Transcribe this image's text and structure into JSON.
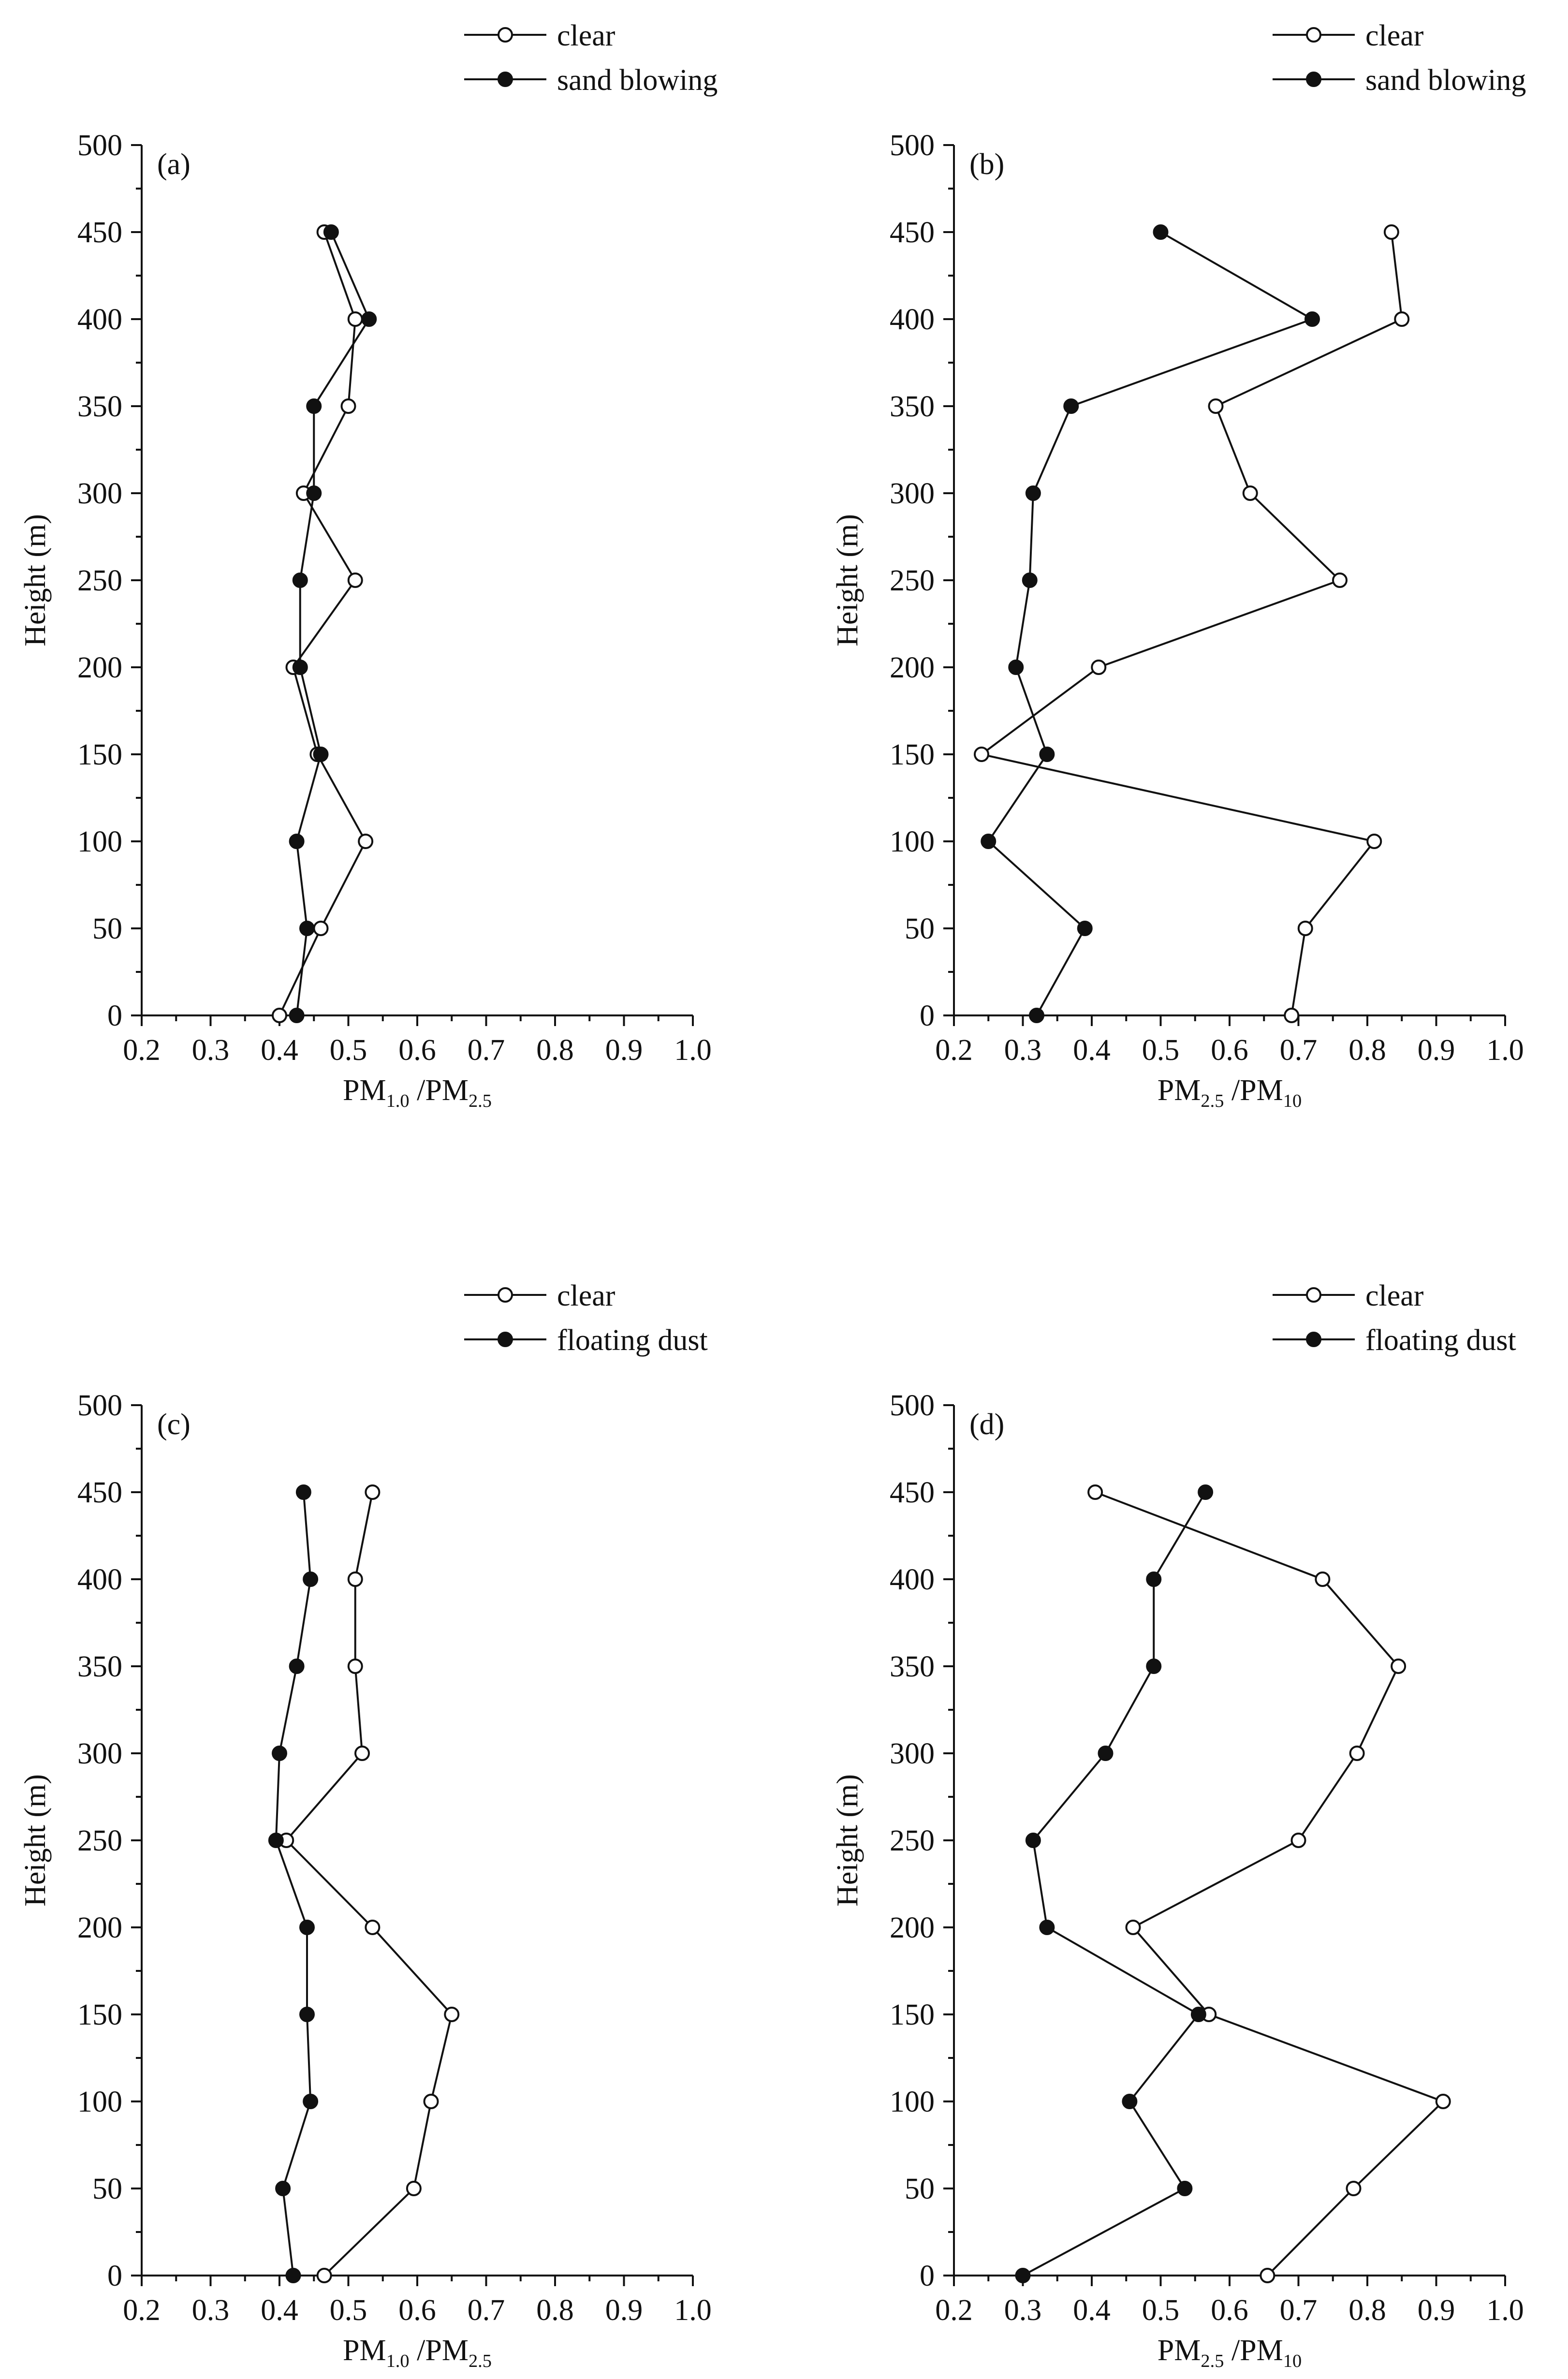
{
  "chart_data": [
    {
      "type": "line",
      "panel_label": "(a)",
      "xlabel": {
        "base": "PM",
        "sub1": "1.0",
        "mid": " /PM",
        "sub2": "2.5"
      },
      "ylabel": "Height (m)",
      "xlim": [
        0.2,
        1.0
      ],
      "ylim": [
        0,
        500
      ],
      "xticks": [
        "0.2",
        "0.3",
        "0.4",
        "0.5",
        "0.6",
        "0.7",
        "0.8",
        "0.9",
        "1.0"
      ],
      "yticks": [
        "0",
        "50",
        "100",
        "150",
        "200",
        "250",
        "300",
        "350",
        "400",
        "450",
        "500"
      ],
      "heights": [
        0,
        50,
        100,
        150,
        200,
        250,
        300,
        350,
        400,
        450
      ],
      "legend_position": "top-right",
      "series": [
        {
          "name": "clear",
          "marker": "open-circle",
          "values": [
            0.4,
            0.46,
            0.525,
            0.455,
            0.42,
            0.51,
            0.435,
            0.5,
            0.51,
            0.465
          ]
        },
        {
          "name": "sand blowing",
          "marker": "filled-circle",
          "values": [
            0.425,
            0.44,
            0.425,
            0.46,
            0.43,
            0.43,
            0.45,
            0.45,
            0.53,
            0.475
          ]
        }
      ]
    },
    {
      "type": "line",
      "panel_label": "(b)",
      "xlabel": {
        "base": "PM",
        "sub1": "2.5",
        "mid": " /PM",
        "sub2": "10"
      },
      "ylabel": "Height (m)",
      "xlim": [
        0.2,
        1.0
      ],
      "ylim": [
        0,
        500
      ],
      "xticks": [
        "0.2",
        "0.3",
        "0.4",
        "0.5",
        "0.6",
        "0.7",
        "0.8",
        "0.9",
        "1.0"
      ],
      "yticks": [
        "0",
        "50",
        "100",
        "150",
        "200",
        "250",
        "300",
        "350",
        "400",
        "450",
        "500"
      ],
      "heights": [
        0,
        50,
        100,
        150,
        200,
        250,
        300,
        350,
        400,
        450
      ],
      "legend_position": "top-right",
      "series": [
        {
          "name": "clear",
          "marker": "open-circle",
          "values": [
            0.69,
            0.71,
            0.81,
            0.24,
            0.41,
            0.76,
            0.63,
            0.58,
            0.85,
            0.835
          ]
        },
        {
          "name": "sand blowing",
          "marker": "filled-circle",
          "values": [
            0.32,
            0.39,
            0.25,
            0.335,
            0.29,
            0.31,
            0.315,
            0.37,
            0.72,
            0.5
          ]
        }
      ]
    },
    {
      "type": "line",
      "panel_label": "(c)",
      "xlabel": {
        "base": "PM",
        "sub1": "1.0",
        "mid": " /PM",
        "sub2": "2.5"
      },
      "ylabel": "Height (m)",
      "xlim": [
        0.2,
        1.0
      ],
      "ylim": [
        0,
        500
      ],
      "xticks": [
        "0.2",
        "0.3",
        "0.4",
        "0.5",
        "0.6",
        "0.7",
        "0.8",
        "0.9",
        "1.0"
      ],
      "yticks": [
        "0",
        "50",
        "100",
        "150",
        "200",
        "250",
        "300",
        "350",
        "400",
        "450",
        "500"
      ],
      "heights": [
        0,
        50,
        100,
        150,
        200,
        250,
        300,
        350,
        400,
        450
      ],
      "legend_position": "top-right",
      "series": [
        {
          "name": "clear",
          "marker": "open-circle",
          "values": [
            0.465,
            0.595,
            0.62,
            0.65,
            0.535,
            0.41,
            0.52,
            0.51,
            0.51,
            0.535
          ]
        },
        {
          "name": "floating dust",
          "marker": "filled-circle",
          "values": [
            0.42,
            0.405,
            0.445,
            0.44,
            0.44,
            0.395,
            0.4,
            0.425,
            0.445,
            0.435
          ]
        }
      ]
    },
    {
      "type": "line",
      "panel_label": "(d)",
      "xlabel": {
        "base": "PM",
        "sub1": "2.5",
        "mid": " /PM",
        "sub2": "10"
      },
      "ylabel": "Height (m)",
      "xlim": [
        0.2,
        1.0
      ],
      "ylim": [
        0,
        500
      ],
      "xticks": [
        "0.2",
        "0.3",
        "0.4",
        "0.5",
        "0.6",
        "0.7",
        "0.8",
        "0.9",
        "1.0"
      ],
      "yticks": [
        "0",
        "50",
        "100",
        "150",
        "200",
        "250",
        "300",
        "350",
        "400",
        "450",
        "500"
      ],
      "heights": [
        0,
        50,
        100,
        150,
        200,
        250,
        300,
        350,
        400,
        450
      ],
      "legend_position": "top-right",
      "series": [
        {
          "name": "clear",
          "marker": "open-circle",
          "values": [
            0.655,
            0.78,
            0.91,
            0.57,
            0.46,
            0.7,
            0.785,
            0.845,
            0.735,
            0.405
          ]
        },
        {
          "name": "floating dust",
          "marker": "filled-circle",
          "values": [
            0.3,
            0.535,
            0.455,
            0.555,
            0.335,
            0.315,
            0.42,
            0.49,
            0.49,
            0.565
          ]
        }
      ]
    }
  ]
}
